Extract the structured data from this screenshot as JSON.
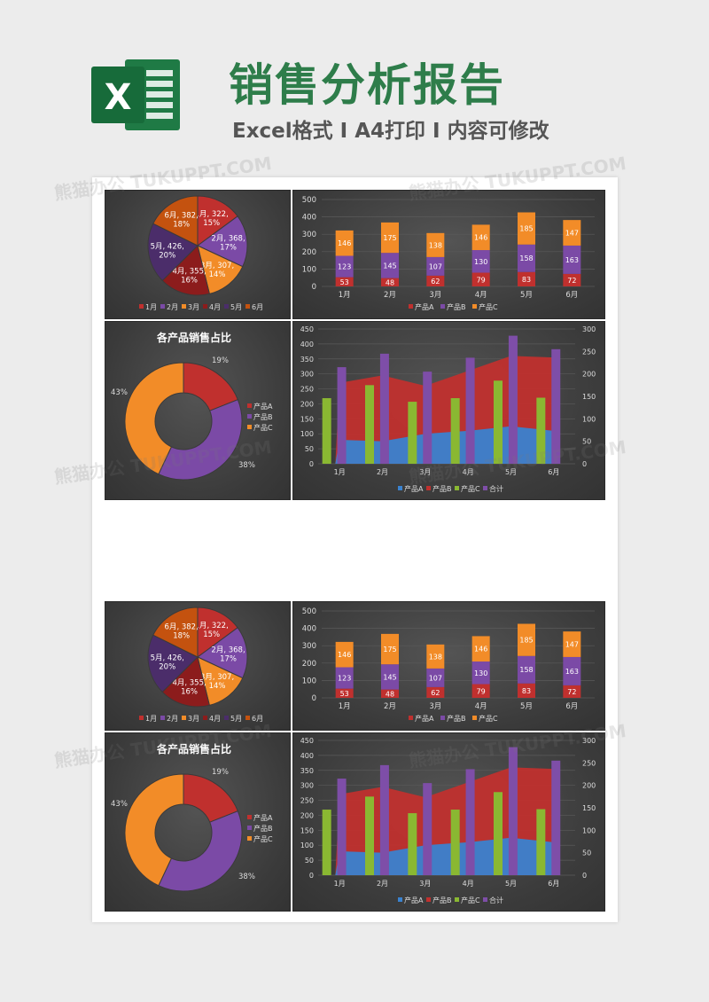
{
  "header": {
    "title": "销售分析报告",
    "subtitle": "Excel格式 I A4打印 I 内容可修改",
    "logo_letter": "X"
  },
  "months": [
    "1月",
    "2月",
    "3月",
    "4月",
    "5月",
    "6月"
  ],
  "products": [
    "产品A",
    "产品B",
    "产品C"
  ],
  "colors": {
    "month_slices": [
      "#c0302e",
      "#7b4aa6",
      "#f28c28",
      "#8c1c1c",
      "#4b2d6a",
      "#c4520f"
    ],
    "productA": "#3a82cf",
    "productB": "#c0302e",
    "productC": "#f28c28",
    "productB_stack": "#7b4aa6",
    "productC_bar": "#8ab832",
    "total": "#7e4ea8"
  },
  "chart_data": [
    {
      "type": "pie",
      "id": "month-pie",
      "categories": [
        "1月",
        "2月",
        "3月",
        "4月",
        "5月",
        "6月"
      ],
      "values": [
        322,
        368,
        307,
        355,
        426,
        382
      ],
      "percent_labels": [
        "15%",
        "17%",
        "14%",
        "16%",
        "20%",
        "18%"
      ],
      "legend": "bottom"
    },
    {
      "type": "bar",
      "id": "stacked-bar",
      "stacked": true,
      "categories": [
        "1月",
        "2月",
        "3月",
        "4月",
        "5月",
        "6月"
      ],
      "series": [
        {
          "name": "产品A",
          "values": [
            53,
            48,
            62,
            79,
            83,
            72
          ]
        },
        {
          "name": "产品B",
          "values": [
            123,
            145,
            107,
            130,
            158,
            163
          ]
        },
        {
          "name": "产品C",
          "values": [
            146,
            175,
            138,
            146,
            185,
            147
          ]
        }
      ],
      "ylim": [
        0,
        500
      ],
      "yticks": [
        0,
        100,
        200,
        300,
        400,
        500
      ],
      "legend": "bottom"
    },
    {
      "type": "pie",
      "id": "product-donut",
      "donut": true,
      "title": "各产品销售占比",
      "categories": [
        "产品A",
        "产品B",
        "产品C"
      ],
      "values": [
        19,
        38,
        43
      ],
      "percent_labels": [
        "19%",
        "38%",
        "43%"
      ],
      "legend": "right"
    },
    {
      "type": "area",
      "id": "combo",
      "categories": [
        "1月",
        "2月",
        "3月",
        "4月",
        "5月",
        "6月"
      ],
      "series": [
        {
          "name": "产品A",
          "type": "area",
          "axis": "left",
          "values": [
            80,
            75,
            100,
            110,
            125,
            110
          ]
        },
        {
          "name": "产品B",
          "type": "area",
          "axis": "left",
          "values": [
            270,
            295,
            260,
            310,
            360,
            355
          ]
        },
        {
          "name": "产品C",
          "type": "bar",
          "axis": "right",
          "values": [
            146,
            175,
            138,
            146,
            185,
            147
          ]
        },
        {
          "name": "合计",
          "type": "bar",
          "axis": "right",
          "values": [
            215,
            245,
            205,
            236,
            285,
            255
          ]
        }
      ],
      "ylim_left": [
        0,
        450
      ],
      "yticks_left": [
        0,
        50,
        100,
        150,
        200,
        250,
        300,
        350,
        400,
        450
      ],
      "ylim_right": [
        0,
        300
      ],
      "yticks_right": [
        0,
        50,
        100,
        150,
        200,
        250,
        300
      ],
      "legend": "bottom"
    }
  ],
  "watermark": "熊猫办公 TUKUPPT.COM"
}
